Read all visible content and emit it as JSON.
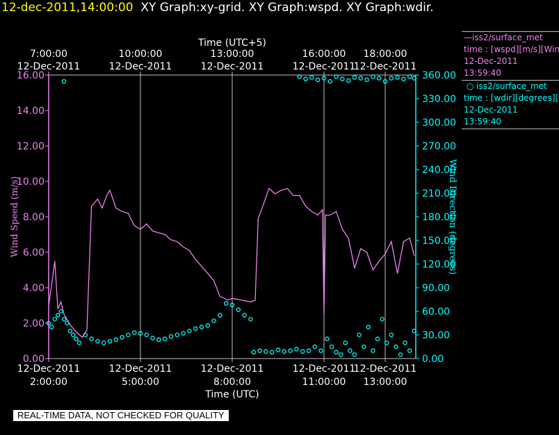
{
  "header": {
    "time": "12-dec-2011,14:00:00",
    "graphs": "XY Graph:xy-grid.  XY Graph:wspd.  XY Graph:wdir."
  },
  "legend": {
    "wspd": {
      "name": "iss2/surface_met",
      "desc": "time : [wspd][m/s][Wind",
      "date": "12-Dec-2011",
      "time": "13:59:40"
    },
    "wdir": {
      "name": "iss2/surface_met",
      "desc": "time : [wdir][degrees][Wind",
      "date": "12-Dec-2011",
      "time": "13:59:40"
    }
  },
  "footer": {
    "quality_note": "REAL-TIME DATA, NOT CHECKED FOR QUALITY"
  },
  "chart_data": {
    "type": "line",
    "xlabel_bottom": "Time (UTC)",
    "xlabel_top": "Time (UTC+5)",
    "ylabel_left": "Wind Speed (m/s)",
    "ylabel_right": "Wind Direction (degrees)",
    "xlim": [
      2.0,
      14.0
    ],
    "ylim_left": [
      0,
      16
    ],
    "ylim_right": [
      0,
      360
    ],
    "grid": "vertical lines",
    "colors": {
      "wspd": "#ee82ee",
      "wdir": "#00ffff",
      "axes": "#c0c0c0"
    },
    "bottom_ticks": [
      {
        "x": 2.0,
        "date": "12-Dec-2011",
        "time": "2:00:00"
      },
      {
        "x": 5.0,
        "date": "12-Dec-2011",
        "time": "5:00:00"
      },
      {
        "x": 8.0,
        "date": "12-Dec-2011",
        "time": "8:00:00"
      },
      {
        "x": 11.0,
        "date": "12-Dec-2011",
        "time": "11:00:00"
      },
      {
        "x": 13.0,
        "date": "12-Dec-2011",
        "time": "13:00:00"
      }
    ],
    "top_ticks": [
      {
        "x": 2.0,
        "time": "7:00:00",
        "date": "12-Dec-2011"
      },
      {
        "x": 5.0,
        "time": "10:00:00",
        "date": "12-Dec-2011"
      },
      {
        "x": 8.0,
        "time": "13:00:00",
        "date": "12-Dec-2011"
      },
      {
        "x": 11.0,
        "time": "16:00:00",
        "date": "12-Dec-2011"
      },
      {
        "x": 13.0,
        "time": "18:00:00",
        "date": "12-Dec-2011"
      }
    ],
    "left_ticks": [
      "0.00",
      "2.00",
      "4.00",
      "6.00",
      "8.00",
      "10.00",
      "12.00",
      "14.00",
      "16.00"
    ],
    "right_ticks": [
      "0.00",
      "30.00",
      "60.00",
      "90.00",
      "120.00",
      "150.00",
      "180.00",
      "210.00",
      "240.00",
      "270.00",
      "300.00",
      "330.00",
      "360.00"
    ],
    "series": [
      {
        "name": "wspd",
        "style": "line",
        "axis": "left",
        "x": [
          2.0,
          2.1,
          2.2,
          2.3,
          2.4,
          2.5,
          2.6,
          2.75,
          2.9,
          3.1,
          3.25,
          3.4,
          3.6,
          3.75,
          3.9,
          4.0,
          4.2,
          4.4,
          4.6,
          4.8,
          5.0,
          5.2,
          5.4,
          5.6,
          5.8,
          6.0,
          6.2,
          6.4,
          6.6,
          6.8,
          7.0,
          7.2,
          7.4,
          7.6,
          7.75,
          7.85,
          8.0,
          8.3,
          8.6,
          8.75,
          8.85,
          9.0,
          9.2,
          9.4,
          9.6,
          9.8,
          10.0,
          10.2,
          10.4,
          10.6,
          10.8,
          10.95,
          11.0,
          11.05,
          11.2,
          11.4,
          11.6,
          11.8,
          12.0,
          12.2,
          12.4,
          12.6,
          12.8,
          13.0,
          13.2,
          13.4,
          13.6,
          13.8,
          13.95
        ],
        "values": [
          3.0,
          4.2,
          5.5,
          2.8,
          3.2,
          2.5,
          2.2,
          1.8,
          1.5,
          1.2,
          1.6,
          8.6,
          9.0,
          8.5,
          9.2,
          9.5,
          8.5,
          8.3,
          8.2,
          7.5,
          7.3,
          7.6,
          7.2,
          7.1,
          7.0,
          6.7,
          6.6,
          6.3,
          6.1,
          5.6,
          5.2,
          4.8,
          4.4,
          3.5,
          3.4,
          3.3,
          3.4,
          3.3,
          3.2,
          3.3,
          7.9,
          8.6,
          9.6,
          9.3,
          9.5,
          9.6,
          9.2,
          9.2,
          8.6,
          8.3,
          8.1,
          8.4,
          2.5,
          8.1,
          8.1,
          8.3,
          7.3,
          6.8,
          5.1,
          6.2,
          6.0,
          5.0,
          5.5,
          5.9,
          6.6,
          4.8,
          6.6,
          6.8,
          5.8
        ]
      },
      {
        "name": "wdir",
        "style": "points",
        "axis": "right",
        "x": [
          2.0,
          2.1,
          2.2,
          2.3,
          2.4,
          2.5,
          2.6,
          2.7,
          2.8,
          2.9,
          3.0,
          3.2,
          3.4,
          3.6,
          3.8,
          4.0,
          4.2,
          4.4,
          4.6,
          4.8,
          5.0,
          5.2,
          5.4,
          5.6,
          5.8,
          6.0,
          6.2,
          6.4,
          6.6,
          6.8,
          7.0,
          7.2,
          7.4,
          7.6,
          7.8,
          8.0,
          8.2,
          8.4,
          8.6,
          8.7,
          8.9,
          9.1,
          9.3,
          9.5,
          9.7,
          9.9,
          10.1,
          10.3,
          10.5,
          10.7,
          10.9,
          11.1,
          11.25,
          11.4,
          11.55,
          11.7,
          11.85,
          12.0,
          12.15,
          12.3,
          12.45,
          12.6,
          12.75,
          12.9,
          13.05,
          13.2,
          13.35,
          13.5,
          13.65,
          13.8,
          13.95
        ],
        "values": [
          45,
          40,
          50,
          55,
          60,
          50,
          45,
          35,
          30,
          25,
          20,
          30,
          25,
          22,
          20,
          22,
          24,
          27,
          30,
          33,
          32,
          30,
          26,
          24,
          25,
          28,
          30,
          32,
          35,
          38,
          40,
          42,
          48,
          55,
          70,
          68,
          62,
          55,
          50,
          8,
          10,
          9,
          8,
          11,
          9,
          10,
          12,
          9,
          10,
          15,
          10,
          25,
          15,
          8,
          5,
          20,
          10,
          5,
          30,
          15,
          40,
          10,
          25,
          50,
          20,
          30,
          15,
          5,
          20,
          10,
          35
        ]
      },
      {
        "name": "wdir_wrap",
        "style": "points",
        "axis": "right",
        "x": [
          2.5,
          10.2,
          10.4,
          10.6,
          10.8,
          11.0,
          11.2,
          11.4,
          11.6,
          11.8,
          12.0,
          12.2,
          12.4,
          12.6,
          12.8,
          13.0,
          13.2,
          13.4,
          13.6,
          13.8,
          13.95
        ],
        "values": [
          352,
          358,
          355,
          357,
          354,
          356,
          352,
          358,
          355,
          353,
          357,
          356,
          354,
          358,
          356,
          352,
          356,
          357,
          355,
          358,
          356
        ]
      }
    ]
  }
}
